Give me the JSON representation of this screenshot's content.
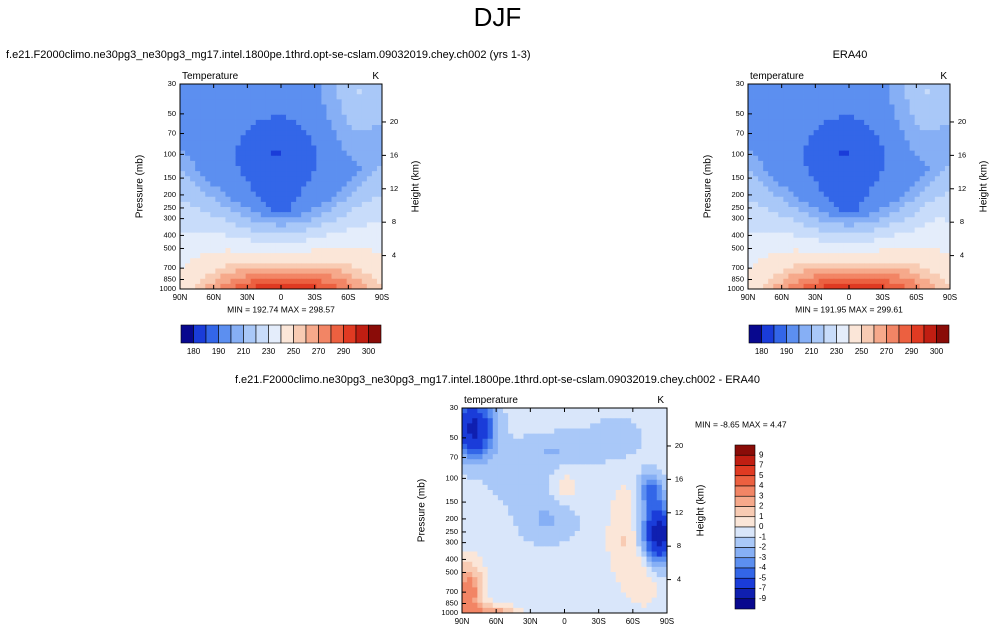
{
  "figure": {
    "title": "DJF"
  },
  "chart_data": [
    {
      "type": "heatmap",
      "panel": "model",
      "title": "f.e21.F2000climo.ne30pg3_ne30pg3_mg17.intel.1800pe.1thrd.opt-se-cslam.09032019.chey.ch002 (yrs 1-3)",
      "left_label": "Temperature",
      "right_label": "K",
      "xlabel": "",
      "ylabel": "Pressure (mb)",
      "y2label": "Height (km)",
      "x_ticks": [
        "90N",
        "60N",
        "30N",
        "0",
        "30S",
        "60S",
        "90S"
      ],
      "y_ticks": [
        "30",
        "50",
        "70",
        "100",
        "150",
        "200",
        "250",
        "300",
        "400",
        "500",
        "700",
        "850",
        "1000"
      ],
      "y2_ticks": [
        "20",
        "16",
        "12",
        "8",
        "4"
      ],
      "stats": "MIN = 192.74   MAX = 298.57",
      "min": 192.74,
      "max": 298.57,
      "colorbar_labels": [
        "180",
        "190",
        "210",
        "230",
        "250",
        "270",
        "290",
        "300"
      ]
    },
    {
      "type": "heatmap",
      "panel": "obs",
      "title": "ERA40",
      "left_label": "temperature",
      "right_label": "K",
      "xlabel": "",
      "ylabel": "Pressure (mb)",
      "y2label": "Height (km)",
      "x_ticks": [
        "90N",
        "60N",
        "30N",
        "0",
        "30S",
        "60S",
        "90S"
      ],
      "y_ticks": [
        "30",
        "50",
        "70",
        "100",
        "150",
        "200",
        "250",
        "300",
        "400",
        "500",
        "700",
        "850",
        "1000"
      ],
      "y2_ticks": [
        "20",
        "16",
        "12",
        "8",
        "4"
      ],
      "stats": "MIN = 191.95   MAX = 299.61",
      "min": 191.95,
      "max": 299.61,
      "colorbar_labels": [
        "180",
        "190",
        "210",
        "230",
        "250",
        "270",
        "290",
        "300"
      ]
    },
    {
      "type": "heatmap",
      "panel": "difference",
      "title": "f.e21.F2000climo.ne30pg3_ne30pg3_mg17.intel.1800pe.1thrd.opt-se-cslam.09032019.chey.ch002 - ERA40",
      "left_label": "temperature",
      "right_label": "K",
      "xlabel": "",
      "ylabel": "Pressure (mb)",
      "y2label": "Height (km)",
      "x_ticks": [
        "90N",
        "60N",
        "30N",
        "0",
        "30S",
        "60S",
        "90S"
      ],
      "y_ticks": [
        "30",
        "50",
        "70",
        "100",
        "150",
        "200",
        "250",
        "300",
        "400",
        "500",
        "700",
        "850",
        "1000"
      ],
      "y2_ticks": [
        "20",
        "16",
        "12",
        "8",
        "4"
      ],
      "stats": "MIN =  -8.65  MAX =   4.47",
      "min": -8.65,
      "max": 4.47,
      "colorbar_labels": [
        "9",
        "7",
        "5",
        "4",
        "3",
        "2",
        "1",
        "0",
        "-1",
        "-2",
        "-3",
        "-4",
        "-5",
        "-7",
        "-9"
      ]
    }
  ],
  "colors": {
    "temperature_scale": [
      "#08088e",
      "#1a3cd9",
      "#3366e8",
      "#5c8ff0",
      "#86aff5",
      "#a9c8f8",
      "#c8dcfa",
      "#e4edfb",
      "#fbe6d8",
      "#f8cbb3",
      "#f6a98b",
      "#f28565",
      "#ec6040",
      "#e03a22",
      "#c01e12",
      "#8a0c08"
    ],
    "difference_scale": [
      "#8a0c08",
      "#c01e12",
      "#e03a22",
      "#ec6040",
      "#f28565",
      "#f6a98b",
      "#f8cbb3",
      "#fbe6d8",
      "#d9e6fa",
      "#a9c8f8",
      "#86aff5",
      "#5c8ff0",
      "#3366e8",
      "#1a3cd9",
      "#0f1fb0",
      "#08088e"
    ]
  }
}
